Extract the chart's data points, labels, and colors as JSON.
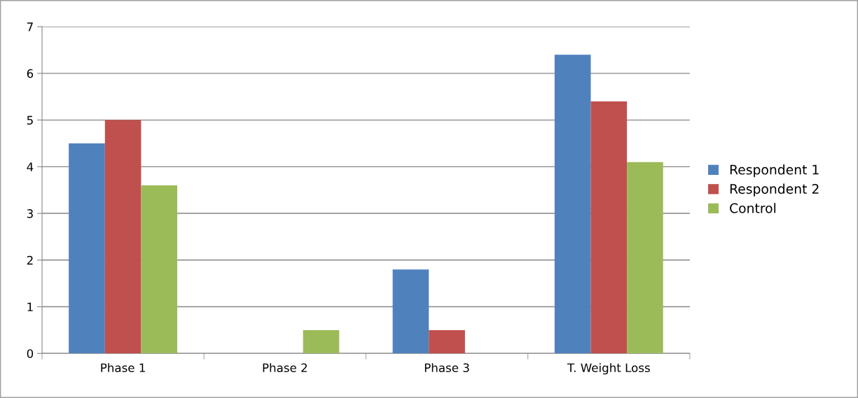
{
  "chart_data": {
    "type": "bar",
    "categories": [
      "Phase 1",
      "Phase 2",
      "Phase 3",
      "T. Weight Loss"
    ],
    "series": [
      {
        "name": "Respondent 1",
        "color": "#4f81bd",
        "values": [
          4.5,
          0,
          1.8,
          6.4
        ]
      },
      {
        "name": "Respondent 2",
        "color": "#c0504d",
        "values": [
          5.0,
          0,
          0.5,
          5.4
        ]
      },
      {
        "name": "Control",
        "color": "#9bbb59",
        "values": [
          3.6,
          0.5,
          0,
          4.1
        ]
      }
    ],
    "ylim": [
      0,
      7
    ],
    "yticks": [
      0,
      1,
      2,
      3,
      4,
      5,
      6,
      7
    ],
    "grid": "y",
    "legend": "right"
  }
}
